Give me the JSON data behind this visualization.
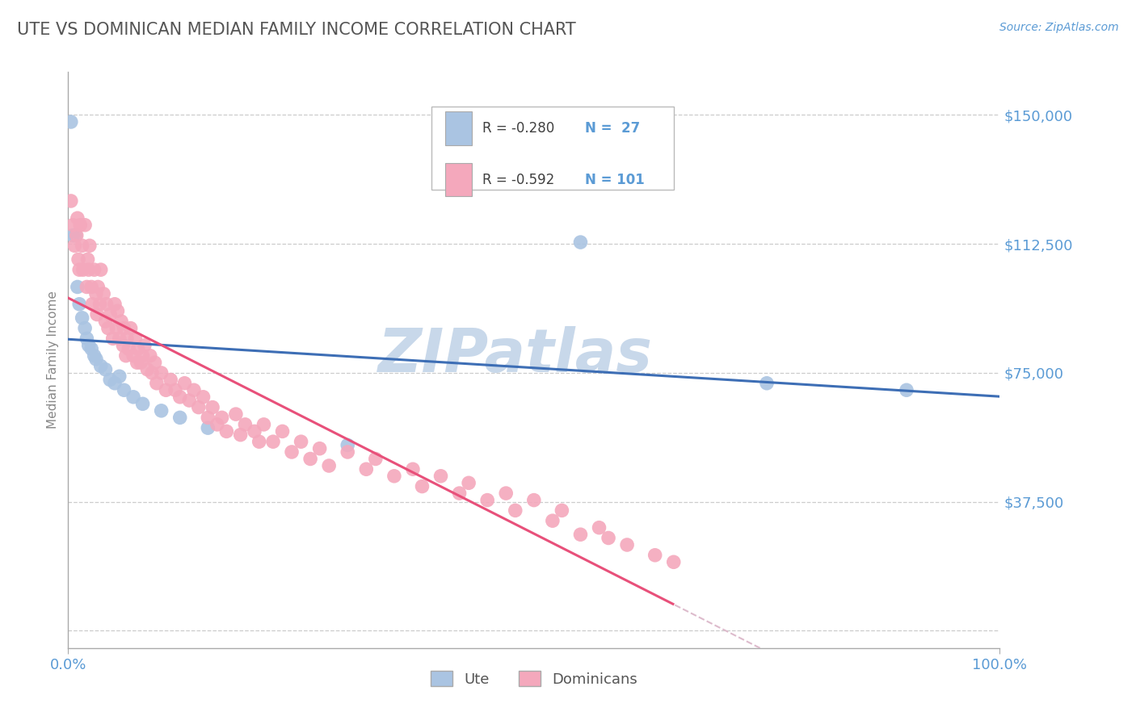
{
  "title": "UTE VS DOMINICAN MEDIAN FAMILY INCOME CORRELATION CHART",
  "source": "Source: ZipAtlas.com",
  "ylabel": "Median Family Income",
  "xlim": [
    0.0,
    100.0
  ],
  "ylim": [
    -5000,
    162500
  ],
  "yticks": [
    0,
    37500,
    75000,
    112500,
    150000
  ],
  "ytick_labels": [
    "",
    "$37,500",
    "$75,000",
    "$112,500",
    "$150,000"
  ],
  "xtick_labels": [
    "0.0%",
    "100.0%"
  ],
  "legend_r1": "R = -0.280",
  "legend_n1": "N =  27",
  "legend_r2": "R = -0.592",
  "legend_n2": "N = 101",
  "ute_color": "#aac4e2",
  "dominican_color": "#f4a8bc",
  "ute_line_color": "#3d6eb5",
  "dominican_line_color": "#e8507a",
  "dominican_dash_color": "#ddbbcc",
  "title_color": "#555555",
  "axis_label_color": "#5b9bd5",
  "watermark": "ZIPatlas",
  "watermark_color": "#c8d8ea",
  "background_color": "#ffffff",
  "ute_points_x": [
    0.3,
    0.5,
    0.8,
    1.0,
    1.2,
    1.5,
    1.8,
    2.0,
    2.2,
    2.5,
    2.8,
    3.0,
    3.5,
    4.0,
    4.5,
    5.0,
    5.5,
    6.0,
    7.0,
    8.0,
    10.0,
    12.0,
    15.0,
    30.0,
    55.0,
    75.0,
    90.0
  ],
  "ute_points_y": [
    148000,
    115000,
    115000,
    100000,
    95000,
    91000,
    88000,
    85000,
    83000,
    82000,
    80000,
    79000,
    77000,
    76000,
    73000,
    72000,
    74000,
    70000,
    68000,
    66000,
    64000,
    62000,
    59000,
    54000,
    113000,
    72000,
    70000
  ],
  "dom_points_x": [
    0.3,
    0.5,
    0.7,
    0.9,
    1.0,
    1.1,
    1.2,
    1.3,
    1.5,
    1.6,
    1.8,
    2.0,
    2.1,
    2.2,
    2.3,
    2.5,
    2.6,
    2.8,
    3.0,
    3.1,
    3.2,
    3.4,
    3.5,
    3.8,
    4.0,
    4.1,
    4.3,
    4.5,
    4.8,
    5.0,
    5.2,
    5.3,
    5.5,
    5.7,
    5.9,
    6.0,
    6.2,
    6.3,
    6.5,
    6.7,
    7.0,
    7.2,
    7.4,
    7.5,
    7.8,
    8.0,
    8.2,
    8.5,
    8.8,
    9.0,
    9.3,
    9.5,
    10.0,
    10.5,
    11.0,
    11.5,
    12.0,
    12.5,
    13.0,
    13.5,
    14.0,
    14.5,
    15.0,
    15.5,
    16.0,
    16.5,
    17.0,
    18.0,
    18.5,
    19.0,
    20.0,
    20.5,
    21.0,
    22.0,
    23.0,
    24.0,
    25.0,
    26.0,
    27.0,
    28.0,
    30.0,
    32.0,
    33.0,
    35.0,
    37.0,
    38.0,
    40.0,
    42.0,
    43.0,
    45.0,
    47.0,
    48.0,
    50.0,
    52.0,
    53.0,
    55.0,
    57.0,
    58.0,
    60.0,
    63.0,
    65.0
  ],
  "dom_points_y": [
    125000,
    118000,
    112000,
    115000,
    120000,
    108000,
    105000,
    118000,
    112000,
    105000,
    118000,
    100000,
    108000,
    105000,
    112000,
    100000,
    95000,
    105000,
    98000,
    92000,
    100000,
    95000,
    105000,
    98000,
    90000,
    95000,
    88000,
    92000,
    85000,
    95000,
    88000,
    93000,
    85000,
    90000,
    83000,
    88000,
    80000,
    85000,
    82000,
    88000,
    80000,
    85000,
    78000,
    82000,
    78000,
    80000,
    83000,
    76000,
    80000,
    75000,
    78000,
    72000,
    75000,
    70000,
    73000,
    70000,
    68000,
    72000,
    67000,
    70000,
    65000,
    68000,
    62000,
    65000,
    60000,
    62000,
    58000,
    63000,
    57000,
    60000,
    58000,
    55000,
    60000,
    55000,
    58000,
    52000,
    55000,
    50000,
    53000,
    48000,
    52000,
    47000,
    50000,
    45000,
    47000,
    42000,
    45000,
    40000,
    43000,
    38000,
    40000,
    35000,
    38000,
    32000,
    35000,
    28000,
    30000,
    27000,
    25000,
    22000,
    20000
  ]
}
